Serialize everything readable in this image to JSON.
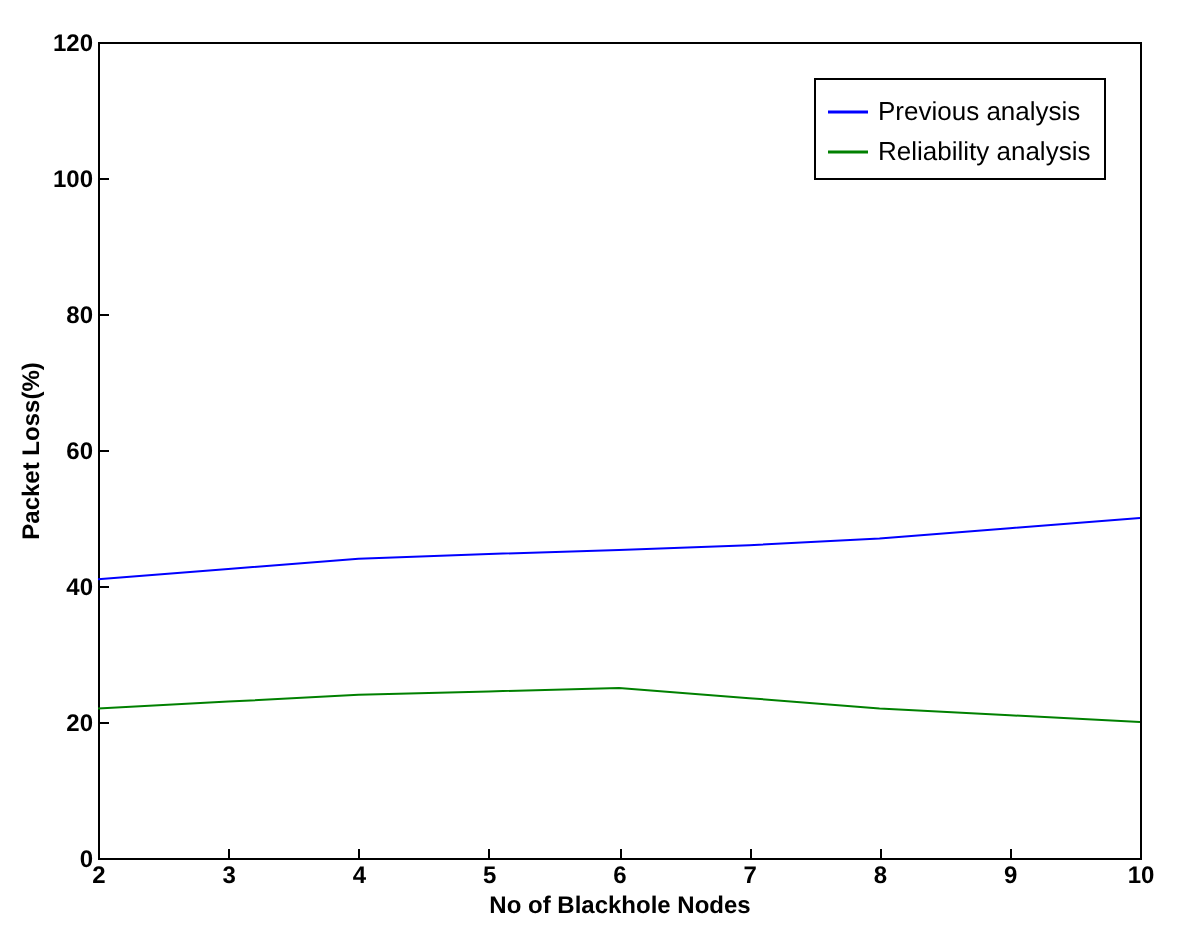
{
  "chart_data": {
    "type": "line",
    "xlabel": "No of Blackhole Nodes",
    "ylabel": "Packet Loss(%)",
    "x": [
      2,
      3,
      4,
      5,
      6,
      7,
      8,
      9,
      10
    ],
    "series": [
      {
        "name": "Previous analysis",
        "color": "#0000ff",
        "values": [
          41,
          42.5,
          44,
          44.7,
          45.3,
          46,
          47,
          48.5,
          50
        ]
      },
      {
        "name": "Reliability analysis",
        "color": "#008000",
        "values": [
          22,
          23,
          24,
          24.5,
          25,
          23.5,
          22,
          21,
          20
        ]
      }
    ],
    "xlim": [
      2,
      10
    ],
    "xticks": [
      2,
      3,
      4,
      5,
      6,
      7,
      8,
      9,
      10
    ],
    "ylim": [
      0,
      120
    ],
    "yticks": [
      0,
      20,
      40,
      60,
      80,
      100,
      120
    ],
    "grid": false,
    "legend": "top right",
    "line_style": "solid",
    "marker": "none"
  }
}
